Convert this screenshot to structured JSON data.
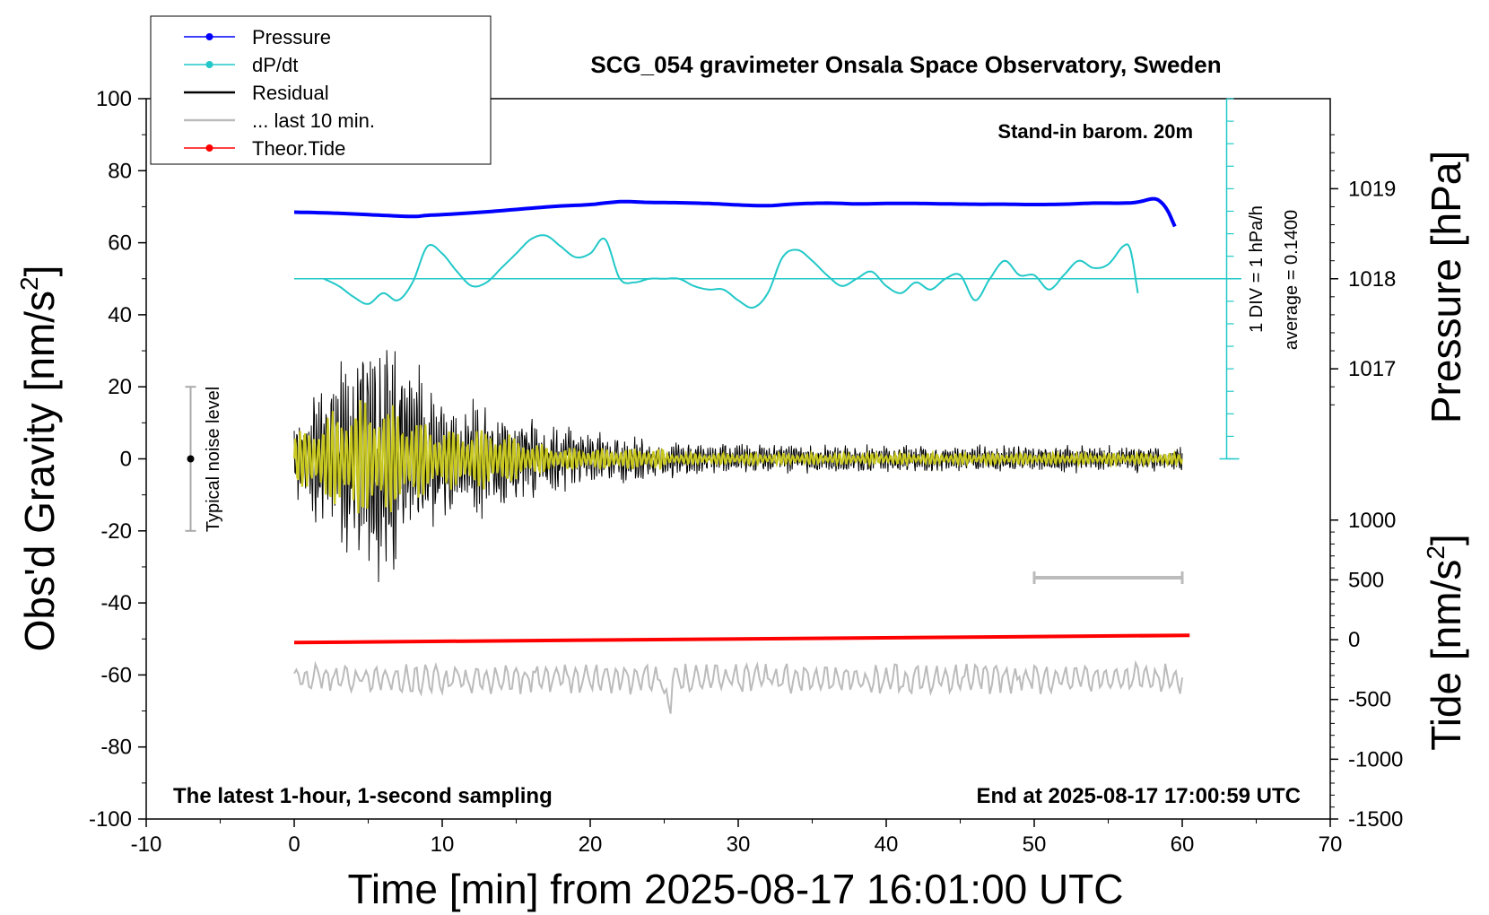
{
  "chart_data": {
    "type": "line",
    "title": "SCG_054 gravimeter Onsala Space Observatory, Sweden",
    "xlabel": "Time [min] from 2025-08-17 16:01:00 UTC",
    "ylabel_main": "Obs'd Gravity [nm/s",
    "ylabel_sup": "2",
    "ylabel_main_end": "]",
    "ylabel_pressure": "Pressure [hPa]",
    "ylabel_tide": "Tide [nm/s",
    "ylabel_tide_sup": "2",
    "ylabel_tide_end": "]",
    "xlim": [
      -10,
      70
    ],
    "ylim": [
      -100,
      100
    ],
    "x_ticks": [
      -10,
      0,
      10,
      20,
      30,
      40,
      50,
      60,
      70
    ],
    "y_ticks": [
      -100,
      -80,
      -60,
      -40,
      -20,
      0,
      20,
      40,
      60,
      80,
      100
    ],
    "pressure_ticks": [
      1017,
      1018,
      1019
    ],
    "pressure_range_at_y": {
      "1017": 25,
      "1018": 50,
      "1019": 75
    },
    "tide_ticks": [
      -1500,
      -1000,
      -500,
      0,
      500,
      1000
    ],
    "tide_range_at_y": {
      "-1500": -100,
      "1000": -17
    },
    "annotations": {
      "stand_in": "Stand-in barom. 20m",
      "latest": "The latest 1-hour, 1-second sampling",
      "end_at": "End at 2025-08-17 17:00:59 UTC",
      "div_label": "1 DIV = 1 hPa/h",
      "average_label": "average = 0.1400",
      "noise_label": "Typical noise level"
    },
    "noise_bar": {
      "x": -7,
      "y_center": 0,
      "y_low": -20,
      "y_high": 20
    },
    "last10_bar": {
      "x_start": 50,
      "x_end": 60,
      "y": -33
    },
    "legend": [
      {
        "name": "Pressure",
        "color": "#0000ff",
        "marker": true
      },
      {
        "name": "dP/dt",
        "color": "#22c8c8",
        "marker": true
      },
      {
        "name": "Residual",
        "color": "#000000",
        "marker": false
      },
      {
        "name": "... last 10 min.",
        "color": "#bbbbbb",
        "marker": false
      },
      {
        "name": "Theor.Tide",
        "color": "#ff0000",
        "marker": true
      }
    ],
    "series": [
      {
        "name": "Pressure",
        "color": "#0000ff",
        "x": [
          0,
          2,
          4,
          6,
          8,
          9,
          10,
          12,
          14,
          16,
          18,
          20,
          22,
          24,
          26,
          28,
          30,
          32,
          34,
          36,
          38,
          40,
          42,
          44,
          46,
          48,
          50,
          52,
          54,
          56,
          57,
          58,
          58.5,
          59,
          59.5
        ],
        "y": [
          68.5,
          68.3,
          68.0,
          67.6,
          67.3,
          67.6,
          67.8,
          68.3,
          68.9,
          69.6,
          70.2,
          70.6,
          71.4,
          71.2,
          71.1,
          70.9,
          70.5,
          70.3,
          70.8,
          71.0,
          70.8,
          70.9,
          70.9,
          70.8,
          70.7,
          70.7,
          70.6,
          70.7,
          71.0,
          71.0,
          71.3,
          72.2,
          71.5,
          69.0,
          64.5
        ]
      },
      {
        "name": "dP/dt",
        "color": "#22c8c8",
        "x": [
          2,
          3,
          4,
          5,
          6,
          7,
          8,
          9,
          10,
          11,
          12,
          13,
          14,
          15,
          16,
          17,
          18,
          19,
          20,
          21,
          22,
          23,
          24,
          25,
          26,
          27,
          28,
          29,
          30,
          31,
          32,
          33,
          34,
          35,
          36,
          37,
          38,
          39,
          40,
          41,
          42,
          43,
          44,
          45,
          46,
          47,
          48,
          49,
          50,
          51,
          52,
          53,
          54,
          55,
          56,
          56.5,
          57
        ],
        "y": [
          50,
          48,
          45,
          43,
          46,
          44,
          49,
          59,
          57,
          52,
          48,
          49,
          53,
          57,
          61,
          62,
          59,
          56,
          57,
          61,
          50,
          49,
          50,
          50,
          50,
          48,
          47,
          47,
          44,
          42,
          46,
          56,
          58,
          55,
          51,
          48,
          50,
          52,
          48,
          46,
          49,
          47,
          50,
          51,
          44,
          50,
          55,
          51,
          51,
          47,
          51,
          55,
          53,
          54,
          59,
          58,
          46
        ]
      },
      {
        "name": "Residual",
        "color": "#000000"
      },
      {
        "name": "... last 10 min.",
        "color": "#bbbbbb"
      },
      {
        "name": "Theor.Tide",
        "color": "#ff0000",
        "x": [
          0,
          60.5
        ],
        "y": [
          -51,
          -49
        ]
      }
    ],
    "filtered_residual_color": "#c8c820",
    "dpdt_baseline_y": 50,
    "dpdt_axis": {
      "x": 63,
      "y_top": 100,
      "y_bottom": 0
    },
    "grid": false
  }
}
